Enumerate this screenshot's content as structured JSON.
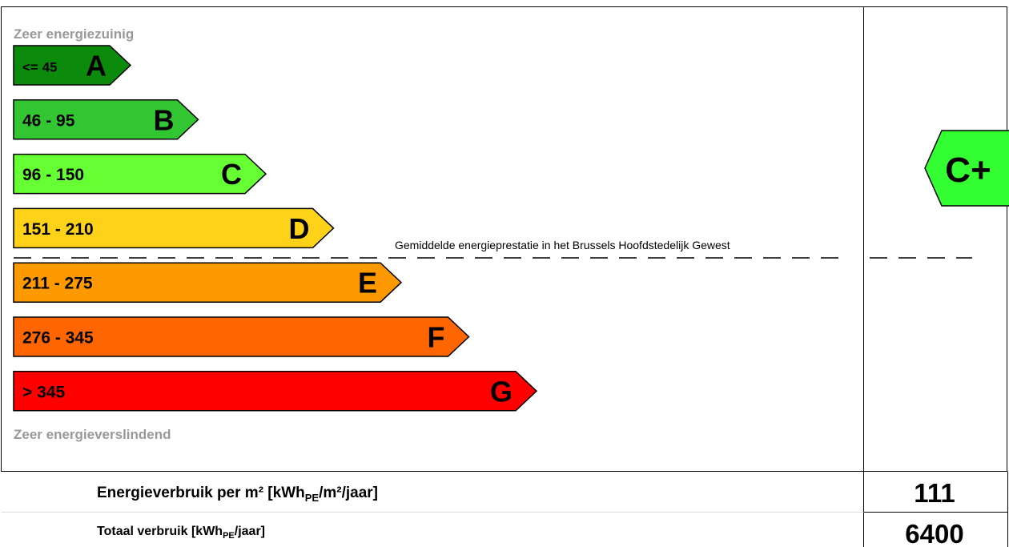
{
  "top_label": "Zeer energiezuinig",
  "bottom_label": "Zeer energieverslindend",
  "bands": [
    {
      "letter": "A",
      "range": "<= 45",
      "color": "#0c8a0c"
    },
    {
      "letter": "B",
      "range": "46 - 95",
      "color": "#33c633"
    },
    {
      "letter": "C",
      "range": "96 - 150",
      "color": "#66ff33"
    },
    {
      "letter": "D",
      "range": "151 - 210",
      "color": "#ffd21a"
    },
    {
      "letter": "E",
      "range": "211 - 275",
      "color": "#ff9900"
    },
    {
      "letter": "F",
      "range": "276 - 345",
      "color": "#ff6600"
    },
    {
      "letter": "G",
      "range": "> 345",
      "color": "#ff0000"
    }
  ],
  "average_line_label": "Gemiddelde energieprestatie in het Brussels Hoofdstedelijk Gewest",
  "rating": {
    "label": "C+",
    "color": "#33ff33"
  },
  "rows": [
    {
      "label_prefix": "Energieverbruik per m² [kWh",
      "label_sub": "PE",
      "label_suffix": "/m²/jaar]",
      "value": "111"
    },
    {
      "label_prefix": "Totaal verbruik [kWh",
      "label_sub": "PE",
      "label_suffix": "/jaar]",
      "value": "6400"
    }
  ]
}
